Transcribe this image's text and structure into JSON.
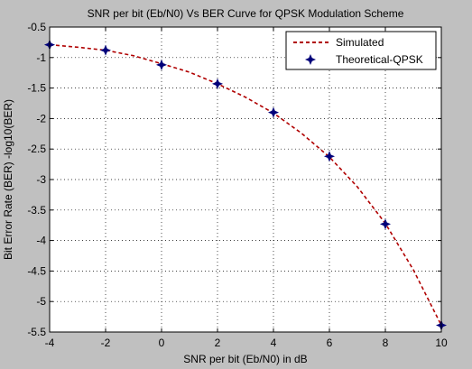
{
  "chart_data": {
    "type": "line",
    "title": "SNR per bit (Eb/N0) Vs BER Curve for QPSK Modulation Scheme",
    "xlabel": "SNR per bit (Eb/N0) in dB",
    "ylabel": "Bit Error Rate (BER)  -log10(BER)",
    "xlim": [
      -4,
      10
    ],
    "ylim": [
      -5.5,
      -0.5
    ],
    "xticks": [
      -4,
      -2,
      0,
      2,
      4,
      6,
      8,
      10
    ],
    "yticks": [
      -0.5,
      -1,
      -1.5,
      -2,
      -2.5,
      -3,
      -3.5,
      -4,
      -4.5,
      -5,
      -5.5
    ],
    "xtick_labels": [
      "-4",
      "-2",
      "0",
      "2",
      "4",
      "6",
      "8",
      "10"
    ],
    "ytick_labels": [
      "-0.5",
      "-1",
      "-1.5",
      "-2",
      "-2.5",
      "-3",
      "-3.5",
      "-4",
      "-4.5",
      "-5",
      "-5.5"
    ],
    "grid": true,
    "legend_position": "top-right",
    "x": [
      -4,
      -3,
      -2,
      -1,
      0,
      1,
      2,
      3,
      4,
      5,
      6,
      7,
      8,
      9,
      10
    ],
    "series": [
      {
        "name": "Simulated",
        "style": "dashed line",
        "color": "#b00000",
        "values": [
          -0.79,
          -0.83,
          -0.88,
          -0.97,
          -1.1,
          -1.24,
          -1.43,
          -1.65,
          -1.91,
          -2.24,
          -2.63,
          -3.12,
          -3.72,
          -4.48,
          -5.39
        ]
      },
      {
        "name": "Theoretical-QPSK",
        "style": "markers",
        "marker": "star",
        "color": "#00007a",
        "values": [
          -0.79,
          null,
          -0.88,
          null,
          -1.12,
          null,
          -1.43,
          null,
          -1.9,
          null,
          -2.62,
          null,
          -3.73,
          null,
          -5.39
        ]
      }
    ]
  }
}
